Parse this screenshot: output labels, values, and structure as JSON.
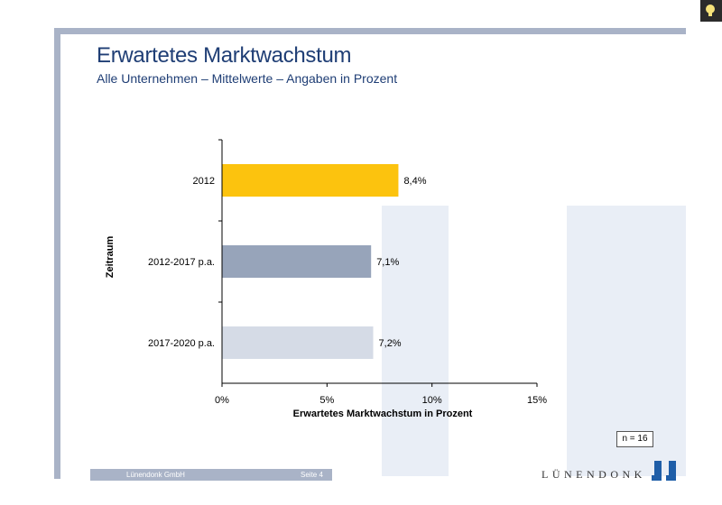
{
  "header": {
    "title": "Erwartetes Marktwachstum",
    "subtitle": "Alle Unternehmen – Mittelwerte – Angaben in Prozent"
  },
  "chart_data": {
    "type": "bar",
    "orientation": "horizontal",
    "categories": [
      "2012",
      "2012-2017 p.a.",
      "2017-2020 p.a."
    ],
    "values": [
      8.4,
      7.1,
      7.2
    ],
    "value_labels": [
      "8,4%",
      "7,1%",
      "7,2%"
    ],
    "bar_colors": [
      "#fcc30e",
      "#97a4ba",
      "#d5dbe6"
    ],
    "xlabel": "Erwartetes Marktwachstum in Prozent",
    "ylabel": "Zeitraum",
    "xlim": [
      0,
      15
    ],
    "xticks": [
      0,
      5,
      10,
      15
    ],
    "xtick_labels": [
      "0%",
      "5%",
      "10%",
      "15%"
    ],
    "grid": false
  },
  "sample_note": "n = 16",
  "footer": {
    "company": "Lünendonk GmbH",
    "page": "Seite 4"
  },
  "logo": {
    "text": "LÜNENDONK",
    "color": "#1f5ea8"
  }
}
